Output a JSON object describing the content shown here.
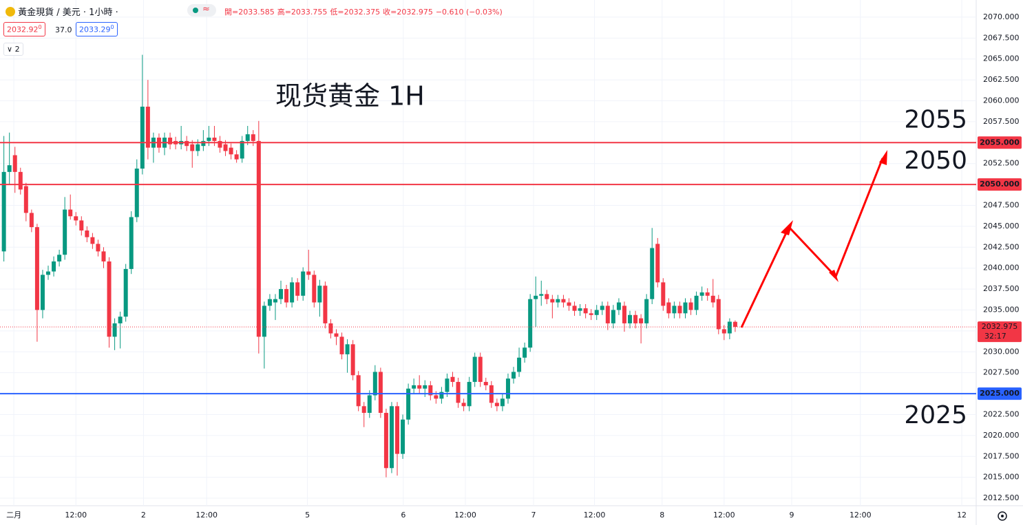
{
  "chart_data": {
    "type": "candlestick",
    "symbol": "黃金現貨 / 美元 · 1小時 ·",
    "ohlc_text": [
      "開=2033.585",
      "高=2033.755",
      "低=2032.375",
      "收=2032.975",
      "−0.610 (−0.03%)"
    ],
    "sell": {
      "price": "2032.92",
      "tail": "0"
    },
    "spread": "37.0",
    "buy": {
      "price": "2033.29",
      "tail": "0"
    },
    "indicators": "2",
    "annotation": "现货黄金 1H",
    "up_color": "#089981",
    "down_color": "#f23645",
    "grid": true,
    "xlim": [
      -0.7,
      175.5
    ],
    "xticks": [
      {
        "value": 1.8,
        "label": "二月"
      },
      {
        "value": 13,
        "label": "12:00"
      },
      {
        "value": 25.2,
        "label": "2"
      },
      {
        "value": 36.6,
        "label": "12:00"
      },
      {
        "value": 54.8,
        "label": "5"
      },
      {
        "value": 72.1,
        "label": "6"
      },
      {
        "value": 83.3,
        "label": "12:00"
      },
      {
        "value": 95.6,
        "label": "7"
      },
      {
        "value": 106.6,
        "label": "12:00"
      },
      {
        "value": 118.8,
        "label": "8"
      },
      {
        "value": 130,
        "label": "12:00"
      },
      {
        "value": 142.2,
        "label": "9"
      },
      {
        "value": 154.6,
        "label": "12:00"
      },
      {
        "value": 172.9,
        "label": "12"
      }
    ],
    "ylim": [
      2011.6,
      2072.05
    ],
    "yticks": [
      {
        "value": 2012.5,
        "label": "2012.500"
      },
      {
        "value": 2015,
        "label": "2015.000"
      },
      {
        "value": 2017.5,
        "label": "2017.500"
      },
      {
        "value": 2020,
        "label": "2020.000"
      },
      {
        "value": 2022.5,
        "label": "2022.500"
      },
      {
        "value": 2025,
        "label": "2025.000"
      },
      {
        "value": 2027.5,
        "label": "2027.500"
      },
      {
        "value": 2030,
        "label": "2030.000"
      },
      {
        "value": 2032.5,
        "label": "2032.500"
      },
      {
        "value": 2035,
        "label": "2035.000"
      },
      {
        "value": 2037.5,
        "label": "2037.500"
      },
      {
        "value": 2040,
        "label": "2040.000"
      },
      {
        "value": 2042.5,
        "label": "2042.500"
      },
      {
        "value": 2045,
        "label": "2045.000"
      },
      {
        "value": 2047.5,
        "label": "2047.500"
      },
      {
        "value": 2050,
        "label": "2050.000"
      },
      {
        "value": 2052.5,
        "label": "2052.500"
      },
      {
        "value": 2055,
        "label": "2055.000"
      },
      {
        "value": 2057.5,
        "label": "2057.500"
      },
      {
        "value": 2060,
        "label": "2060.000"
      },
      {
        "value": 2062.5,
        "label": "2062.500"
      },
      {
        "value": 2065,
        "label": "2065.000"
      },
      {
        "value": 2067.5,
        "label": "2067.500"
      },
      {
        "value": 2070,
        "label": "2070.000"
      }
    ],
    "levels": [
      {
        "value": 2055,
        "label": "2055.000",
        "text": "2055",
        "color": "#f23645"
      },
      {
        "value": 2050,
        "label": "2050.000",
        "text": "2050",
        "color": "#f23645"
      },
      {
        "value": 2025,
        "label": "2025.000",
        "text": "2025",
        "color": "#2962ff"
      }
    ],
    "last": {
      "value": 2032.975,
      "label": "2032.975",
      "countdown": "32:17",
      "color": "#f23645"
    },
    "candles": [
      [
        2042.0,
        2055.8,
        2040.8,
        2051.5
      ],
      [
        2051.5,
        2056.2,
        2050.0,
        2052.3
      ],
      [
        2053.5,
        2054.5,
        2049.0,
        2051.5
      ],
      [
        2051.5,
        2052.0,
        2048.8,
        2049.4
      ],
      [
        2049.8,
        2050.2,
        2045.6,
        2046.6
      ],
      [
        2046.6,
        2047.0,
        2044.3,
        2044.9
      ],
      [
        2044.9,
        2045.3,
        2031.2,
        2035.0
      ],
      [
        2035.0,
        2039.8,
        2034.0,
        2039.2
      ],
      [
        2039.2,
        2040.3,
        2038.6,
        2039.6
      ],
      [
        2039.6,
        2041.4,
        2039.0,
        2040.8
      ],
      [
        2040.8,
        2042.2,
        2040.2,
        2041.6
      ],
      [
        2041.6,
        2048.5,
        2041.0,
        2047.0
      ],
      [
        2047.0,
        2048.8,
        2045.8,
        2046.2
      ],
      [
        2046.2,
        2046.7,
        2045.1,
        2045.7
      ],
      [
        2045.7,
        2046.2,
        2043.9,
        2044.5
      ],
      [
        2044.5,
        2045.0,
        2043.1,
        2043.7
      ],
      [
        2043.7,
        2044.2,
        2042.3,
        2042.9
      ],
      [
        2042.9,
        2043.4,
        2041.4,
        2042.0
      ],
      [
        2042.0,
        2042.5,
        2040.0,
        2040.8
      ],
      [
        2040.8,
        2041.3,
        2030.5,
        2031.8
      ],
      [
        2031.8,
        2034.0,
        2030.2,
        2033.4
      ],
      [
        2033.4,
        2034.8,
        2030.4,
        2034.2
      ],
      [
        2034.2,
        2040.5,
        2033.6,
        2039.9
      ],
      [
        2039.9,
        2046.8,
        2039.3,
        2046.1
      ],
      [
        2046.1,
        2053.0,
        2045.5,
        2051.9
      ],
      [
        2051.9,
        2065.5,
        2051.2,
        2059.3
      ],
      [
        2059.3,
        2062.5,
        2053.0,
        2054.4
      ],
      [
        2054.4,
        2056.2,
        2052.6,
        2055.6
      ],
      [
        2055.6,
        2056.1,
        2053.8,
        2054.4
      ],
      [
        2054.4,
        2056.2,
        2053.5,
        2055.6
      ],
      [
        2055.6,
        2056.2,
        2054.2,
        2054.8
      ],
      [
        2055.2,
        2055.7,
        2054.2,
        2054.8
      ],
      [
        2054.8,
        2057.0,
        2054.2,
        2055.2
      ],
      [
        2055.2,
        2055.8,
        2054.0,
        2054.6
      ],
      [
        2054.8,
        2055.3,
        2052.0,
        2054.0
      ],
      [
        2054.0,
        2055.4,
        2053.4,
        2054.8
      ],
      [
        2054.6,
        2056.5,
        2054.0,
        2055.2
      ],
      [
        2055.2,
        2057.0,
        2054.6,
        2055.6
      ],
      [
        2055.6,
        2057.0,
        2054.6,
        2055.2
      ],
      [
        2055.2,
        2055.8,
        2053.8,
        2054.4
      ],
      [
        2054.8,
        2055.3,
        2053.4,
        2054.0
      ],
      [
        2054.4,
        2054.9,
        2053.0,
        2053.6
      ],
      [
        2053.6,
        2054.1,
        2052.6,
        2053.0
      ],
      [
        2053.1,
        2055.8,
        2052.6,
        2055.2
      ],
      [
        2055.2,
        2057.0,
        2054.7,
        2056.0
      ],
      [
        2056.0,
        2056.5,
        2054.6,
        2055.2
      ],
      [
        2055.2,
        2057.6,
        2029.8,
        2031.8
      ],
      [
        2031.8,
        2036.0,
        2028.0,
        2035.5
      ],
      [
        2035.5,
        2036.9,
        2034.9,
        2036.3
      ],
      [
        2035.9,
        2036.9,
        2033.8,
        2036.3
      ],
      [
        2036.3,
        2038.5,
        2035.7,
        2037.5
      ],
      [
        2037.5,
        2038.0,
        2035.3,
        2035.9
      ],
      [
        2035.9,
        2038.9,
        2035.3,
        2038.3
      ],
      [
        2038.3,
        2038.8,
        2036.1,
        2036.7
      ],
      [
        2036.7,
        2040.1,
        2036.1,
        2039.6
      ],
      [
        2039.6,
        2042.2,
        2038.6,
        2039.2
      ],
      [
        2039.2,
        2039.7,
        2035.3,
        2035.9
      ],
      [
        2035.9,
        2038.6,
        2034.2,
        2037.9
      ],
      [
        2037.9,
        2038.4,
        2032.8,
        2033.4
      ],
      [
        2033.4,
        2033.9,
        2031.6,
        2032.2
      ],
      [
        2032.2,
        2032.7,
        2030.8,
        2031.8
      ],
      [
        2031.8,
        2032.3,
        2029.1,
        2029.7
      ],
      [
        2029.7,
        2031.5,
        2027.5,
        2030.9
      ],
      [
        2030.9,
        2031.4,
        2026.6,
        2027.2
      ],
      [
        2027.2,
        2027.7,
        2022.9,
        2023.5
      ],
      [
        2023.5,
        2024.0,
        2021.0,
        2022.7
      ],
      [
        2022.7,
        2025.4,
        2022.1,
        2024.8
      ],
      [
        2024.8,
        2028.4,
        2024.2,
        2027.6
      ],
      [
        2027.6,
        2028.1,
        2022.1,
        2022.7
      ],
      [
        2022.7,
        2023.2,
        2015.0,
        2016.1
      ],
      [
        2016.1,
        2024.0,
        2015.5,
        2023.5
      ],
      [
        2023.5,
        2024.0,
        2015.2,
        2017.8
      ],
      [
        2017.8,
        2022.5,
        2017.2,
        2021.9
      ],
      [
        2021.9,
        2026.2,
        2021.3,
        2025.6
      ],
      [
        2025.6,
        2026.8,
        2025.0,
        2026.0
      ],
      [
        2026.0,
        2027.2,
        2025.0,
        2025.6
      ],
      [
        2025.6,
        2026.6,
        2024.6,
        2026.0
      ],
      [
        2026.0,
        2026.5,
        2024.2,
        2024.8
      ],
      [
        2024.8,
        2025.3,
        2023.8,
        2024.4
      ],
      [
        2024.4,
        2025.8,
        2023.8,
        2025.2
      ],
      [
        2025.2,
        2027.4,
        2024.6,
        2026.8
      ],
      [
        2027.0,
        2027.6,
        2025.8,
        2026.4
      ],
      [
        2026.4,
        2026.9,
        2023.3,
        2023.9
      ],
      [
        2023.9,
        2024.4,
        2022.9,
        2023.5
      ],
      [
        2023.5,
        2027.0,
        2022.9,
        2026.4
      ],
      [
        2026.4,
        2029.9,
        2025.8,
        2029.4
      ],
      [
        2029.4,
        2029.9,
        2025.8,
        2026.4
      ],
      [
        2026.4,
        2026.9,
        2025.4,
        2026.0
      ],
      [
        2026.0,
        2026.5,
        2023.3,
        2023.9
      ],
      [
        2023.9,
        2024.4,
        2022.9,
        2023.5
      ],
      [
        2023.5,
        2025.0,
        2022.9,
        2024.4
      ],
      [
        2024.4,
        2027.4,
        2023.8,
        2026.8
      ],
      [
        2026.8,
        2028.2,
        2026.2,
        2027.6
      ],
      [
        2027.6,
        2030.5,
        2027.0,
        2029.3
      ],
      [
        2029.3,
        2031.1,
        2028.7,
        2030.5
      ],
      [
        2030.5,
        2036.9,
        2030.0,
        2036.3
      ],
      [
        2036.3,
        2039.0,
        2033.0,
        2036.7
      ],
      [
        2036.7,
        2038.5,
        2035.5,
        2036.9
      ],
      [
        2036.9,
        2037.4,
        2035.7,
        2036.3
      ],
      [
        2036.3,
        2036.8,
        2034.0,
        2035.9
      ],
      [
        2035.9,
        2036.8,
        2035.3,
        2036.3
      ],
      [
        2036.3,
        2036.8,
        2035.3,
        2035.9
      ],
      [
        2035.9,
        2036.4,
        2034.9,
        2035.5
      ],
      [
        2035.5,
        2036.0,
        2034.3,
        2034.9
      ],
      [
        2034.9,
        2035.7,
        2034.3,
        2035.2
      ],
      [
        2035.2,
        2035.7,
        2034.0,
        2034.6
      ],
      [
        2034.6,
        2035.1,
        2033.8,
        2034.4
      ],
      [
        2034.4,
        2035.6,
        2033.8,
        2035.0
      ],
      [
        2035.0,
        2036.0,
        2034.4,
        2035.5
      ],
      [
        2035.5,
        2036.0,
        2032.6,
        2033.4
      ],
      [
        2033.4,
        2035.6,
        2032.8,
        2035.0
      ],
      [
        2035.0,
        2036.4,
        2034.4,
        2035.9
      ],
      [
        2035.5,
        2036.0,
        2032.4,
        2033.4
      ],
      [
        2033.4,
        2034.9,
        2032.8,
        2034.4
      ],
      [
        2034.4,
        2034.9,
        2032.8,
        2033.4
      ],
      [
        2034.0,
        2034.5,
        2031.0,
        2033.4
      ],
      [
        2033.4,
        2036.9,
        2032.8,
        2036.3
      ],
      [
        2036.3,
        2044.8,
        2035.7,
        2042.4
      ],
      [
        2042.9,
        2043.6,
        2037.7,
        2038.3
      ],
      [
        2038.3,
        2038.8,
        2034.9,
        2035.5
      ],
      [
        2035.9,
        2036.4,
        2034.0,
        2034.6
      ],
      [
        2034.6,
        2036.0,
        2034.0,
        2035.5
      ],
      [
        2035.5,
        2036.0,
        2034.0,
        2034.6
      ],
      [
        2034.6,
        2036.4,
        2034.0,
        2035.9
      ],
      [
        2035.9,
        2036.4,
        2034.4,
        2035.0
      ],
      [
        2035.0,
        2037.2,
        2034.4,
        2036.7
      ],
      [
        2036.7,
        2037.8,
        2036.1,
        2037.1
      ],
      [
        2037.1,
        2037.6,
        2036.1,
        2036.7
      ],
      [
        2036.7,
        2038.7,
        2035.3,
        2035.9
      ],
      [
        2036.3,
        2036.8,
        2032.1,
        2032.7
      ],
      [
        2032.7,
        2033.2,
        2031.4,
        2032.2
      ],
      [
        2032.2,
        2034.0,
        2031.5,
        2033.6
      ],
      [
        2033.585,
        2033.755,
        2032.375,
        2032.975
      ]
    ]
  }
}
